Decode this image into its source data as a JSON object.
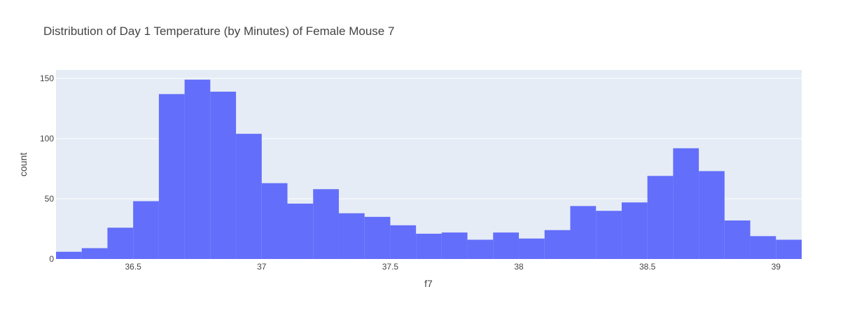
{
  "chart_data": {
    "type": "bar",
    "title": "Distribution of Day 1 Temperature (by Minutes) of Female Mouse 7",
    "xlabel": "f7",
    "ylabel": "count",
    "bin_width": 0.1,
    "bins": [
      {
        "x0": 36.2,
        "x1": 36.3,
        "count": 6
      },
      {
        "x0": 36.3,
        "x1": 36.4,
        "count": 9
      },
      {
        "x0": 36.4,
        "x1": 36.5,
        "count": 26
      },
      {
        "x0": 36.5,
        "x1": 36.6,
        "count": 48
      },
      {
        "x0": 36.6,
        "x1": 36.7,
        "count": 137
      },
      {
        "x0": 36.7,
        "x1": 36.8,
        "count": 149
      },
      {
        "x0": 36.8,
        "x1": 36.9,
        "count": 139
      },
      {
        "x0": 36.9,
        "x1": 37.0,
        "count": 104
      },
      {
        "x0": 37.0,
        "x1": 37.1,
        "count": 63
      },
      {
        "x0": 37.1,
        "x1": 37.2,
        "count": 46
      },
      {
        "x0": 37.2,
        "x1": 37.3,
        "count": 58
      },
      {
        "x0": 37.3,
        "x1": 37.4,
        "count": 38
      },
      {
        "x0": 37.4,
        "x1": 37.5,
        "count": 35
      },
      {
        "x0": 37.5,
        "x1": 37.6,
        "count": 28
      },
      {
        "x0": 37.6,
        "x1": 37.7,
        "count": 21
      },
      {
        "x0": 37.7,
        "x1": 37.8,
        "count": 22
      },
      {
        "x0": 37.8,
        "x1": 37.9,
        "count": 16
      },
      {
        "x0": 37.9,
        "x1": 38.0,
        "count": 22
      },
      {
        "x0": 38.0,
        "x1": 38.1,
        "count": 17
      },
      {
        "x0": 38.1,
        "x1": 38.2,
        "count": 24
      },
      {
        "x0": 38.2,
        "x1": 38.3,
        "count": 44
      },
      {
        "x0": 38.3,
        "x1": 38.4,
        "count": 40
      },
      {
        "x0": 38.4,
        "x1": 38.5,
        "count": 47
      },
      {
        "x0": 38.5,
        "x1": 38.6,
        "count": 69
      },
      {
        "x0": 38.6,
        "x1": 38.7,
        "count": 92
      },
      {
        "x0": 38.7,
        "x1": 38.8,
        "count": 73
      },
      {
        "x0": 38.8,
        "x1": 38.9,
        "count": 32
      },
      {
        "x0": 38.9,
        "x1": 39.0,
        "count": 19
      },
      {
        "x0": 39.0,
        "x1": 39.1,
        "count": 16
      }
    ],
    "xlim": [
      36.2,
      39.1
    ],
    "ylim": [
      0,
      157
    ],
    "xticks": [
      36.5,
      37,
      37.5,
      38,
      38.5,
      39
    ],
    "xtick_labels": [
      "36.5",
      "37",
      "37.5",
      "38",
      "38.5",
      "39"
    ],
    "yticks": [
      0,
      50,
      100,
      150
    ],
    "ytick_labels": [
      "0",
      "50",
      "100",
      "150"
    ],
    "grid": true,
    "legend": "none",
    "colors": {
      "bar": "#636efa",
      "plot_bg": "#e5ecf6",
      "grid": "#ffffff"
    }
  }
}
